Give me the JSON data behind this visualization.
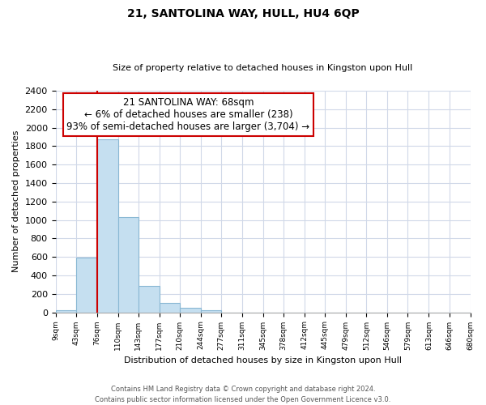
{
  "title": "21, SANTOLINA WAY, HULL, HU4 6QP",
  "subtitle": "Size of property relative to detached houses in Kingston upon Hull",
  "xlabel": "Distribution of detached houses by size in Kingston upon Hull",
  "ylabel": "Number of detached properties",
  "bin_labels": [
    "9sqm",
    "43sqm",
    "76sqm",
    "110sqm",
    "143sqm",
    "177sqm",
    "210sqm",
    "244sqm",
    "277sqm",
    "311sqm",
    "345sqm",
    "378sqm",
    "412sqm",
    "445sqm",
    "479sqm",
    "512sqm",
    "546sqm",
    "579sqm",
    "613sqm",
    "646sqm",
    "680sqm"
  ],
  "bar_values": [
    20,
    595,
    1870,
    1030,
    285,
    105,
    45,
    25,
    0,
    0,
    0,
    0,
    0,
    0,
    0,
    0,
    0,
    0,
    0,
    0
  ],
  "bar_color": "#c5dff0",
  "bar_edge_color": "#8ab8d4",
  "highlight_color": "#cc0000",
  "annotation_title": "21 SANTOLINA WAY: 68sqm",
  "annotation_line1": "← 6% of detached houses are smaller (238)",
  "annotation_line2": "93% of semi-detached houses are larger (3,704) →",
  "annotation_box_color": "#ffffff",
  "annotation_box_edge_color": "#cc0000",
  "ylim": [
    0,
    2400
  ],
  "yticks": [
    0,
    200,
    400,
    600,
    800,
    1000,
    1200,
    1400,
    1600,
    1800,
    2000,
    2200,
    2400
  ],
  "footer_line1": "Contains HM Land Registry data © Crown copyright and database right 2024.",
  "footer_line2": "Contains public sector information licensed under the Open Government Licence v3.0.",
  "background_color": "#ffffff",
  "grid_color": "#d0d8e8"
}
